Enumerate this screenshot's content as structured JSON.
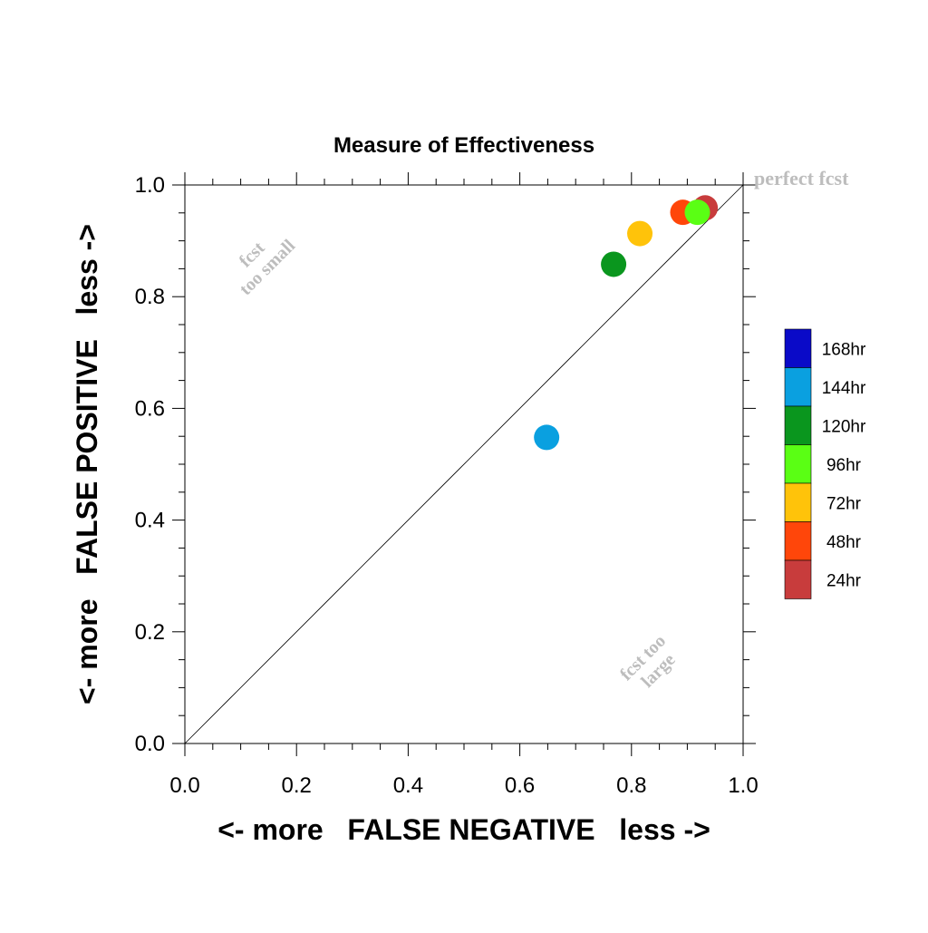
{
  "chart_data": {
    "type": "scatter",
    "title": "Measure of Effectiveness",
    "xlabel": "<- more   FALSE NEGATIVE   less ->",
    "ylabel": "<- more   FALSE POSITIVE   less ->",
    "xlim": [
      0.0,
      1.0
    ],
    "ylim": [
      0.0,
      1.0
    ],
    "x_ticks": [
      "0.0",
      "0.2",
      "0.4",
      "0.6",
      "0.8",
      "1.0"
    ],
    "y_ticks": [
      "0.0",
      "0.2",
      "0.4",
      "0.6",
      "0.8",
      "1.0"
    ],
    "grid": false,
    "diagonal_reference_line": true,
    "annotations": {
      "perfect": "perfect fcst",
      "too_small_line1": "fcst",
      "too_small_line2": "too small",
      "too_large_line1": "fcst too",
      "too_large_line2": "large"
    },
    "legend_placement": "right",
    "series": [
      {
        "name": "168hr",
        "color": "#0a0ac8",
        "points": []
      },
      {
        "name": "144hr",
        "color": "#0aa0e0",
        "points": [
          {
            "x": 0.648,
            "y": 0.548
          }
        ]
      },
      {
        "name": "120hr",
        "color": "#0a961e",
        "points": [
          {
            "x": 0.768,
            "y": 0.858
          }
        ]
      },
      {
        "name": "96hr",
        "color": "#5aff14",
        "points": [
          {
            "x": 0.918,
            "y": 0.951
          }
        ]
      },
      {
        "name": "72hr",
        "color": "#ffc30a",
        "points": [
          {
            "x": 0.815,
            "y": 0.913
          }
        ]
      },
      {
        "name": "48hr",
        "color": "#ff460a",
        "points": [
          {
            "x": 0.892,
            "y": 0.951
          }
        ]
      },
      {
        "name": "24hr",
        "color": "#c83c3c",
        "points": [
          {
            "x": 0.932,
            "y": 0.959
          }
        ]
      }
    ],
    "draw_order": [
      "144hr",
      "120hr",
      "72hr",
      "48hr",
      "24hr",
      "96hr"
    ]
  }
}
